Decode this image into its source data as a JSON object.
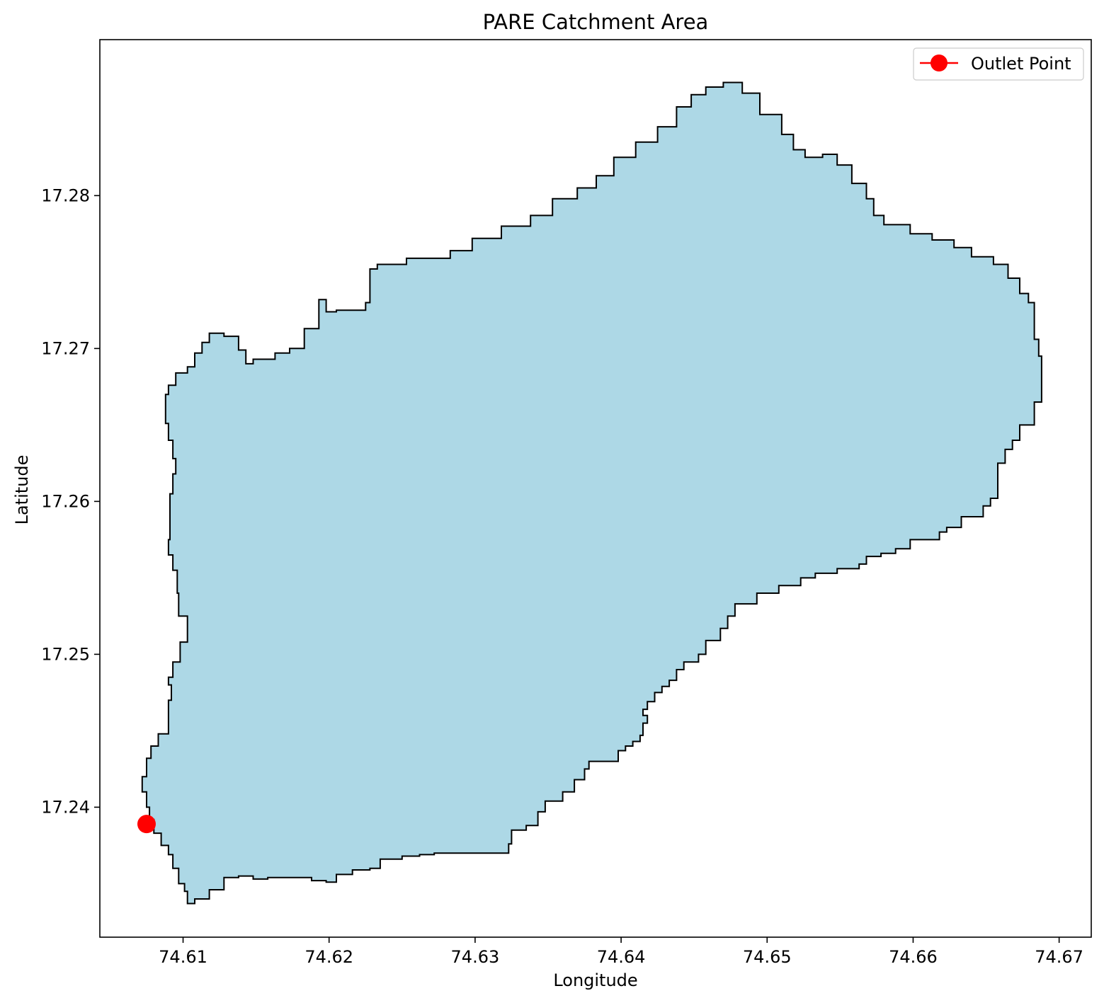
{
  "chart_data": {
    "type": "map",
    "title": "PARE Catchment Area",
    "xlabel": "Longitude",
    "ylabel": "Latitude",
    "xlim": [
      74.6043,
      74.6722
    ],
    "ylim": [
      17.2315,
      17.2902
    ],
    "xticks": [
      {
        "value": 74.61,
        "label": "74.61"
      },
      {
        "value": 74.62,
        "label": "74.62"
      },
      {
        "value": 74.63,
        "label": "74.63"
      },
      {
        "value": 74.64,
        "label": "74.64"
      },
      {
        "value": 74.65,
        "label": "74.65"
      },
      {
        "value": 74.66,
        "label": "74.66"
      },
      {
        "value": 74.67,
        "label": "74.67"
      }
    ],
    "yticks": [
      {
        "value": 17.24,
        "label": "17.24"
      },
      {
        "value": 17.25,
        "label": "17.25"
      },
      {
        "value": 17.26,
        "label": "17.26"
      },
      {
        "value": 17.27,
        "label": "17.27"
      },
      {
        "value": 17.28,
        "label": "17.28"
      }
    ],
    "legend": {
      "position": "top-right",
      "entries": [
        {
          "label": "Outlet Point",
          "color": "#ff0000",
          "marker": "circle"
        }
      ]
    },
    "catchment": {
      "fill": "#add8e6",
      "edge": "#000000",
      "boundary": [
        [
          74.6103,
          17.2337
        ],
        [
          74.6108,
          17.234
        ],
        [
          74.6118,
          17.2346
        ],
        [
          74.6128,
          17.2354
        ],
        [
          74.6138,
          17.2355
        ],
        [
          74.6148,
          17.2353
        ],
        [
          74.6158,
          17.2354
        ],
        [
          74.6168,
          17.2354
        ],
        [
          74.6178,
          17.2354
        ],
        [
          74.6188,
          17.2352
        ],
        [
          74.6198,
          17.2351
        ],
        [
          74.6205,
          17.2356
        ],
        [
          74.6216,
          17.2359
        ],
        [
          74.6228,
          17.236
        ],
        [
          74.6235,
          17.2366
        ],
        [
          74.625,
          17.2368
        ],
        [
          74.6262,
          17.2369
        ],
        [
          74.6272,
          17.237
        ],
        [
          74.6282,
          17.237
        ],
        [
          74.6298,
          17.237
        ],
        [
          74.6318,
          17.237
        ],
        [
          74.6323,
          17.2376
        ],
        [
          74.6325,
          17.2385
        ],
        [
          74.6335,
          17.2388
        ],
        [
          74.6343,
          17.2397
        ],
        [
          74.6348,
          17.2404
        ],
        [
          74.636,
          17.241
        ],
        [
          74.6368,
          17.2418
        ],
        [
          74.6375,
          17.2425
        ],
        [
          74.6378,
          17.243
        ],
        [
          74.6393,
          17.243
        ],
        [
          74.6398,
          17.2437
        ],
        [
          74.6403,
          17.244
        ],
        [
          74.6408,
          17.2443
        ],
        [
          74.6413,
          17.2447
        ],
        [
          74.6415,
          17.2455
        ],
        [
          74.6418,
          17.246
        ],
        [
          74.6415,
          17.2464
        ],
        [
          74.6418,
          17.2469
        ],
        [
          74.6423,
          17.2475
        ],
        [
          74.6428,
          17.2479
        ],
        [
          74.6433,
          17.2483
        ],
        [
          74.6438,
          17.249
        ],
        [
          74.6443,
          17.2495
        ],
        [
          74.6453,
          17.25
        ],
        [
          74.6458,
          17.2509
        ],
        [
          74.6468,
          17.2517
        ],
        [
          74.6473,
          17.2525
        ],
        [
          74.6478,
          17.2533
        ],
        [
          74.6493,
          17.254
        ],
        [
          74.6508,
          17.2545
        ],
        [
          74.6523,
          17.255
        ],
        [
          74.6533,
          17.2553
        ],
        [
          74.6548,
          17.2556
        ],
        [
          74.6563,
          17.2559
        ],
        [
          74.6568,
          17.2564
        ],
        [
          74.6578,
          17.2566
        ],
        [
          74.6588,
          17.2569
        ],
        [
          74.6598,
          17.2575
        ],
        [
          74.6618,
          17.258
        ],
        [
          74.6623,
          17.2583
        ],
        [
          74.6633,
          17.259
        ],
        [
          74.6643,
          17.259
        ],
        [
          74.6648,
          17.2597
        ],
        [
          74.6653,
          17.2602
        ],
        [
          74.6658,
          17.2614
        ],
        [
          74.6658,
          17.2625
        ],
        [
          74.6663,
          17.2634
        ],
        [
          74.6668,
          17.264
        ],
        [
          74.6673,
          17.265
        ],
        [
          74.6683,
          17.2665
        ],
        [
          74.6688,
          17.267
        ],
        [
          74.6688,
          17.2695
        ],
        [
          74.6686,
          17.2706
        ],
        [
          74.6683,
          17.2718
        ],
        [
          74.6683,
          17.273
        ],
        [
          74.6679,
          17.2736
        ],
        [
          74.6673,
          17.2746
        ],
        [
          74.6665,
          17.2755
        ],
        [
          74.6655,
          17.276
        ],
        [
          74.664,
          17.2766
        ],
        [
          74.6628,
          17.2771
        ],
        [
          74.6613,
          17.2775
        ],
        [
          74.6598,
          17.2781
        ],
        [
          74.658,
          17.2787
        ],
        [
          74.6573,
          17.2798
        ],
        [
          74.6568,
          17.2808
        ],
        [
          74.6558,
          17.282
        ],
        [
          74.6548,
          17.2827
        ],
        [
          74.6538,
          17.2825
        ],
        [
          74.6526,
          17.283
        ],
        [
          74.6518,
          17.284
        ],
        [
          74.651,
          17.2853
        ],
        [
          74.6495,
          17.2867
        ],
        [
          74.6483,
          17.2874
        ],
        [
          74.647,
          17.2871
        ],
        [
          74.6458,
          17.2866
        ],
        [
          74.6448,
          17.2858
        ],
        [
          74.6438,
          17.2845
        ],
        [
          74.6425,
          17.2835
        ],
        [
          74.641,
          17.2825
        ],
        [
          74.6395,
          17.2813
        ],
        [
          74.6383,
          17.2805
        ],
        [
          74.637,
          17.2798
        ],
        [
          74.6353,
          17.2787
        ],
        [
          74.6338,
          17.278
        ],
        [
          74.6318,
          17.2772
        ],
        [
          74.6298,
          17.2764
        ],
        [
          74.6283,
          17.2759
        ],
        [
          74.6253,
          17.2755
        ],
        [
          74.6233,
          17.2752
        ],
        [
          74.6228,
          17.273
        ],
        [
          74.6225,
          17.2725
        ],
        [
          74.6205,
          17.2724
        ],
        [
          74.6198,
          17.2732
        ],
        [
          74.6193,
          17.2713
        ],
        [
          74.6183,
          17.27
        ],
        [
          74.6173,
          17.2697
        ],
        [
          74.6163,
          17.2693
        ],
        [
          74.6148,
          17.269
        ],
        [
          74.6143,
          17.2699
        ],
        [
          74.6138,
          17.2708
        ],
        [
          74.6128,
          17.271
        ],
        [
          74.6118,
          17.2704
        ],
        [
          74.6113,
          17.2697
        ],
        [
          74.6108,
          17.2688
        ],
        [
          74.6103,
          17.2684
        ],
        [
          74.6095,
          17.2676
        ],
        [
          74.609,
          17.267
        ],
        [
          74.6088,
          17.2651
        ],
        [
          74.609,
          17.264
        ],
        [
          74.6093,
          17.2628
        ],
        [
          74.6095,
          17.2618
        ],
        [
          74.6093,
          17.2605
        ],
        [
          74.6091,
          17.259
        ],
        [
          74.6091,
          17.2575
        ],
        [
          74.609,
          17.2565
        ],
        [
          74.6093,
          17.2555
        ],
        [
          74.6096,
          17.254
        ],
        [
          74.6097,
          17.2525
        ],
        [
          74.6103,
          17.2508
        ],
        [
          74.6098,
          17.2495
        ],
        [
          74.6093,
          17.2485
        ],
        [
          74.609,
          17.248
        ],
        [
          74.6092,
          17.247
        ],
        [
          74.609,
          17.2458
        ],
        [
          74.609,
          17.2448
        ],
        [
          74.6083,
          17.244
        ],
        [
          74.6078,
          17.2432
        ],
        [
          74.6075,
          17.242
        ],
        [
          74.6072,
          17.241
        ],
        [
          74.6075,
          17.24
        ],
        [
          74.6077,
          17.2392
        ],
        [
          74.608,
          17.2383
        ],
        [
          74.6085,
          17.2375
        ],
        [
          74.609,
          17.2369
        ],
        [
          74.6093,
          17.236
        ],
        [
          74.6097,
          17.235
        ],
        [
          74.6101,
          17.2345
        ],
        [
          74.6103,
          17.2337
        ]
      ]
    },
    "outlet": {
      "label": "Outlet Point",
      "x": 74.6075,
      "y": 17.2389,
      "color": "#ff0000"
    }
  }
}
